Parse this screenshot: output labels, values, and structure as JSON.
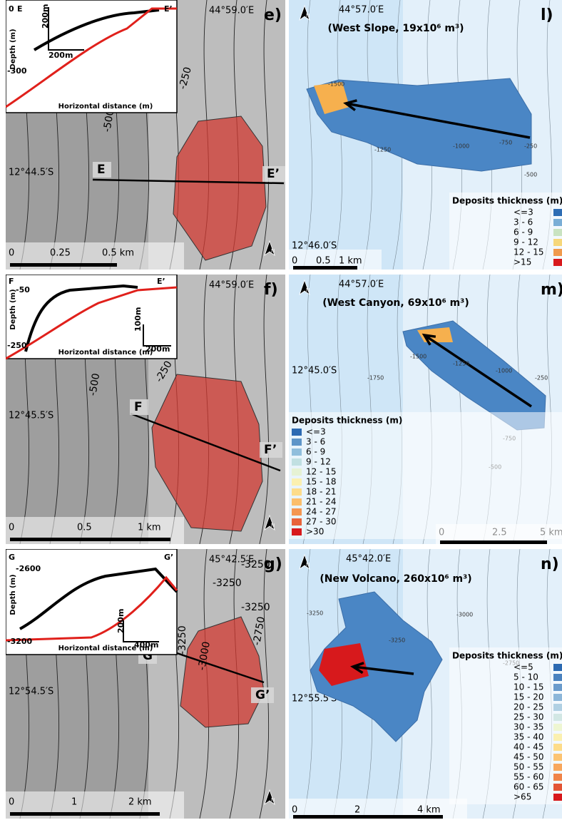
{
  "north_label": "N",
  "inset_axis": {
    "y_label": "Depth (m)",
    "x_label": "Horizontal distance (m)"
  },
  "panels": [
    {
      "label": "e)",
      "lon": "44°59.0′E",
      "lat": "12°44.5′S",
      "profile": {
        "start": "E",
        "end": "E’"
      },
      "contours": [
        "-500",
        "-250"
      ],
      "scale": [
        "0",
        "0.25",
        "0.5 km"
      ],
      "inset": [
        "0",
        "E",
        "E’",
        "-300",
        "200m",
        "200m"
      ]
    },
    {
      "label": "l)",
      "lon": "44°57.0′E",
      "title": "(West Slope, 19x10⁶ m³)",
      "lat": "12°46.0′S",
      "contours": [
        "-1500",
        "-1250",
        "-1000",
        "-750",
        "-500",
        "-250"
      ],
      "scale": [
        "0",
        "0.5",
        "1 km"
      ],
      "legend": {
        "title": "Deposits thickness (m)",
        "items": [
          {
            "label": "<=3",
            "color": "#2e6db4"
          },
          {
            "label": "3 - 6",
            "color": "#7aaed6"
          },
          {
            "label": "6 - 9",
            "color": "#c9e3c1"
          },
          {
            "label": "9 - 12",
            "color": "#f6d77a"
          },
          {
            "label": "12 - 15",
            "color": "#f09a4c"
          },
          {
            "label": ">15",
            "color": "#d7191c"
          }
        ]
      }
    },
    {
      "label": "f)",
      "lon": "44°59.0′E",
      "lat": "12°45.5′S",
      "profile": {
        "start": "F",
        "end": "F’"
      },
      "contours": [
        "-500",
        "-250"
      ],
      "scale": [
        "0",
        "0.5",
        "1 km"
      ],
      "inset": [
        "F",
        "-50",
        "E’",
        "-250",
        "100m",
        "200m"
      ]
    },
    {
      "label": "m)",
      "lon": "44°57.0′E",
      "title": "(West Canyon, 69x10⁶ m³)",
      "lat": "12°45.0′S",
      "contours": [
        "-1750",
        "-1500",
        "-1250",
        "-1000",
        "-750",
        "-500",
        "-250"
      ],
      "scale": [
        "0",
        "2.5",
        "5 km"
      ],
      "legend": {
        "title": "Deposits thickness (m)",
        "items": [
          {
            "label": "<=3",
            "color": "#2c6ab2"
          },
          {
            "label": "3 - 6",
            "color": "#5e95c8"
          },
          {
            "label": "6 - 9",
            "color": "#90bedc"
          },
          {
            "label": "9 - 12",
            "color": "#c1e0e2"
          },
          {
            "label": "12 - 15",
            "color": "#e6f2d4"
          },
          {
            "label": "15 - 18",
            "color": "#fbf0b0"
          },
          {
            "label": "18 - 21",
            "color": "#fddc8a"
          },
          {
            "label": "21 - 24",
            "color": "#fbbe6b"
          },
          {
            "label": "24 - 27",
            "color": "#f49650"
          },
          {
            "label": "27 - 30",
            "color": "#e8633a"
          },
          {
            "label": ">30",
            "color": "#d7191c"
          }
        ]
      }
    },
    {
      "label": "g)",
      "lon": "45°42.5′E",
      "lat": "12°54.5′S",
      "profile": {
        "start": "G",
        "end": "G’"
      },
      "contours": [
        "-3250",
        "-3250",
        "-3250",
        "-3250",
        "-3000",
        "-2750"
      ],
      "scale": [
        "0",
        "1",
        "2 km"
      ],
      "inset": [
        "G",
        "-2600",
        "G’",
        "-3200",
        "200m",
        "400m"
      ]
    },
    {
      "label": "n)",
      "lon": "45°42.0′E",
      "title": "(New Volcano, 260x10⁶ m³)",
      "lat": "12°55.5′S",
      "contours": [
        "-3250",
        "-3250",
        "-3000",
        "-2750"
      ],
      "scale": [
        "0",
        "2",
        "4 km"
      ],
      "legend": {
        "title": "Deposits thickness (m)",
        "items": [
          {
            "label": "<=5",
            "color": "#2c6ab2"
          },
          {
            "label": "5 - 10",
            "color": "#4a82bf"
          },
          {
            "label": "10 - 15",
            "color": "#6a9bcc"
          },
          {
            "label": "15 - 20",
            "color": "#8cb6d9"
          },
          {
            "label": "20 - 25",
            "color": "#b0d0e3"
          },
          {
            "label": "25 - 30",
            "color": "#d2e7e4"
          },
          {
            "label": "30 - 35",
            "color": "#eef6d2"
          },
          {
            "label": "35 - 40",
            "color": "#fbf0b0"
          },
          {
            "label": "40 - 45",
            "color": "#fddc8a"
          },
          {
            "label": "45 - 50",
            "color": "#fcc473"
          },
          {
            "label": "50 - 55",
            "color": "#f8a75d"
          },
          {
            "label": "55 - 60",
            "color": "#f08449"
          },
          {
            "label": "60 - 65",
            "color": "#e35535"
          },
          {
            "label": ">65",
            "color": "#d7191c"
          }
        ]
      }
    }
  ]
}
